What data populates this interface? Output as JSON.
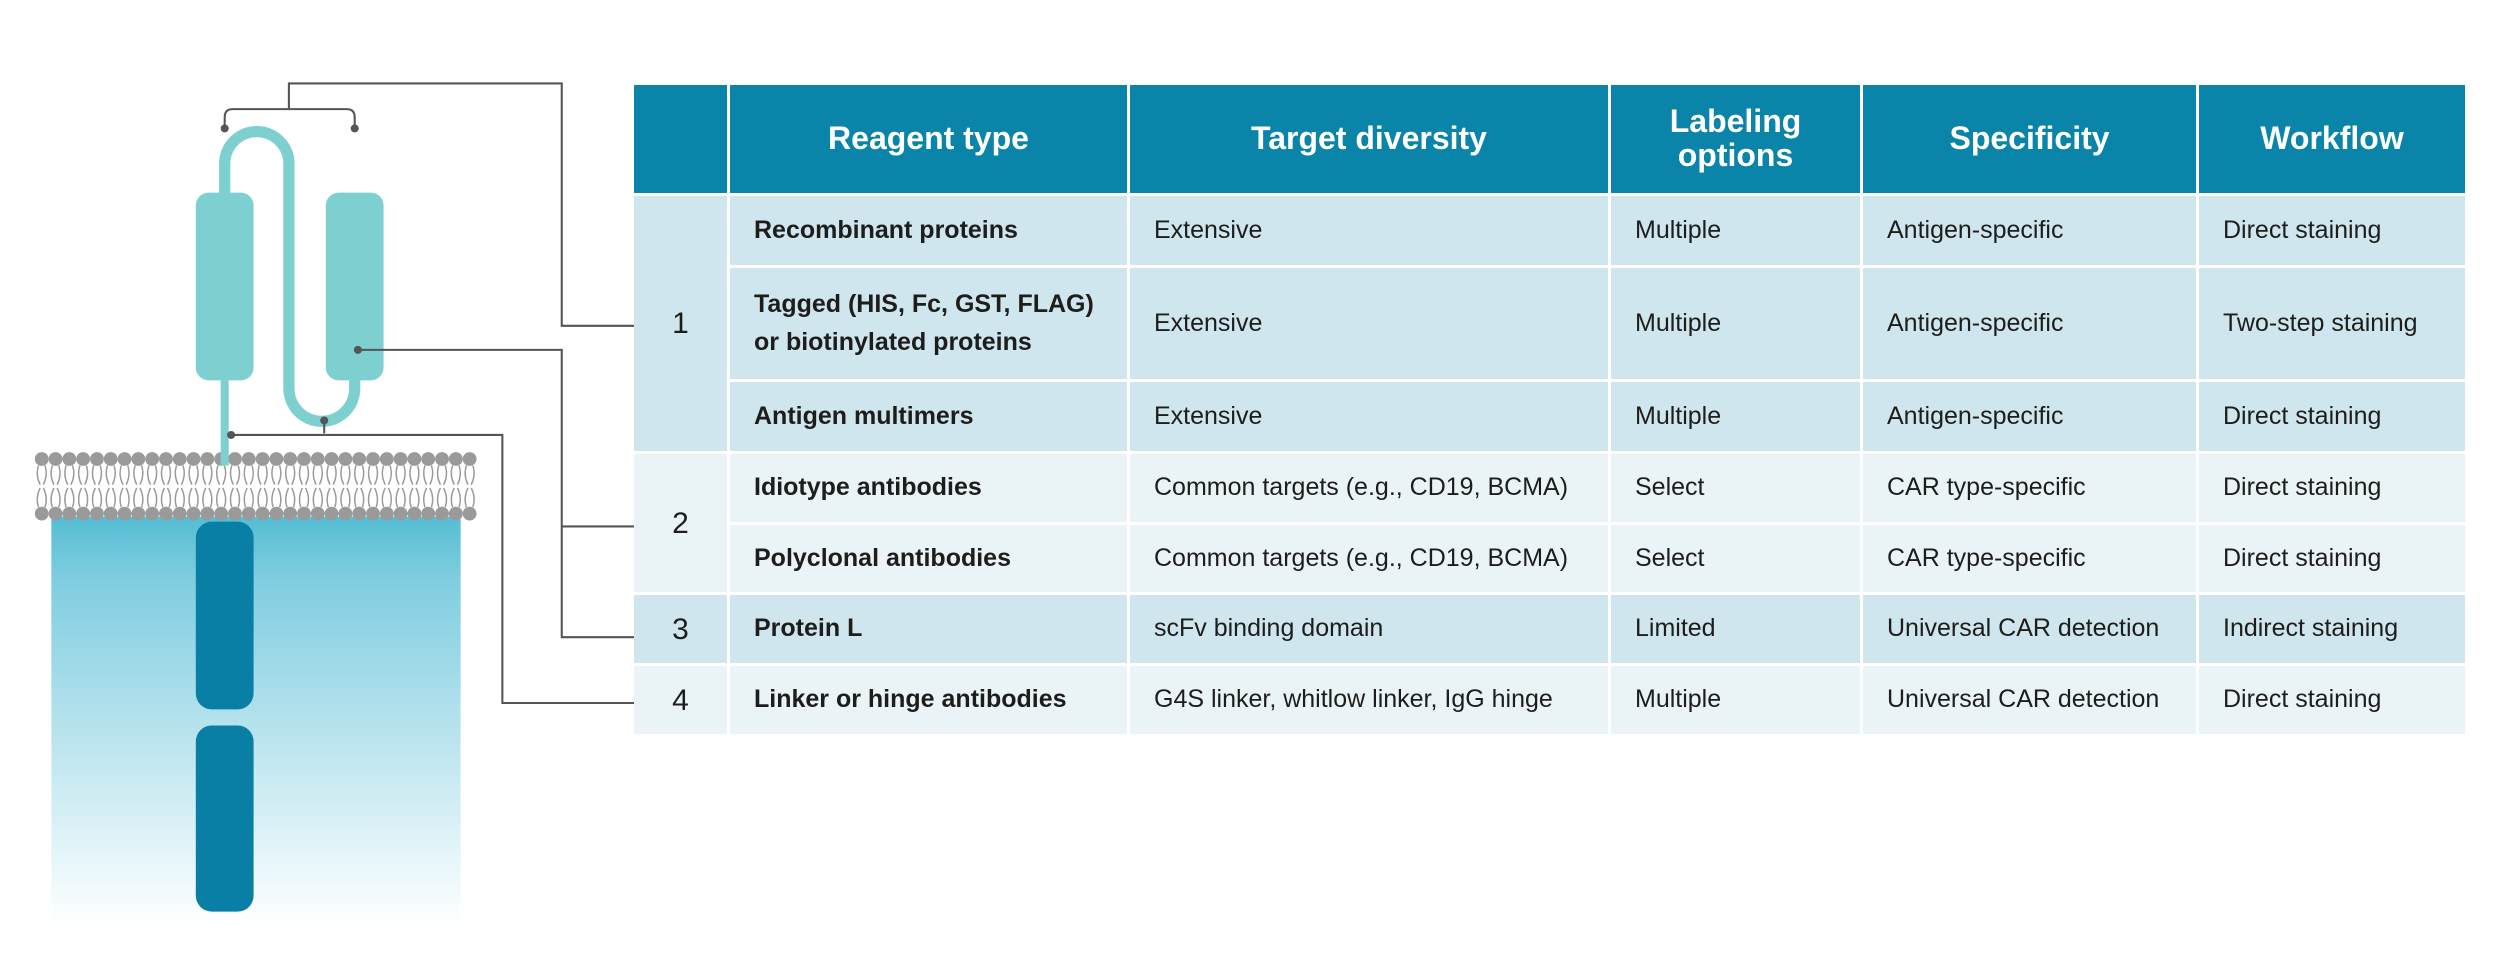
{
  "table": {
    "header": [
      "Reagent type",
      "Target diversity",
      "Labeling options",
      "Specificity",
      "Workflow"
    ],
    "groups": [
      {
        "label": "1",
        "rows": [
          [
            "Recombinant proteins",
            "Extensive",
            "Multiple",
            "Antigen-specific",
            "Direct staining"
          ],
          [
            "Tagged (HIS, Fc, GST, FLAG) or biotinylated proteins",
            "Extensive",
            "Multiple",
            "Antigen-specific",
            "Two-step staining"
          ],
          [
            "Antigen multimers",
            "Extensive",
            "Multiple",
            "Antigen-specific",
            "Direct staining"
          ]
        ]
      },
      {
        "label": "2",
        "rows": [
          [
            "Idiotype antibodies",
            "Common targets (e.g., CD19, BCMA)",
            "Select",
            "CAR type-specific",
            "Direct staining"
          ],
          [
            "Polyclonal antibodies",
            "Common targets (e.g., CD19, BCMA)",
            "Select",
            "CAR type-specific",
            "Direct staining"
          ]
        ]
      },
      {
        "label": "3",
        "rows": [
          [
            "Protein L",
            "scFv binding domain",
            "Limited",
            "Universal CAR detection",
            "Indirect staining"
          ]
        ]
      },
      {
        "label": "4",
        "rows": [
          [
            "Linker or hinge antibodies",
            "G4S linker, whitlow linker, IgG hinge",
            "Multiple",
            "Universal CAR detection",
            "Direct staining"
          ]
        ]
      }
    ]
  }
}
